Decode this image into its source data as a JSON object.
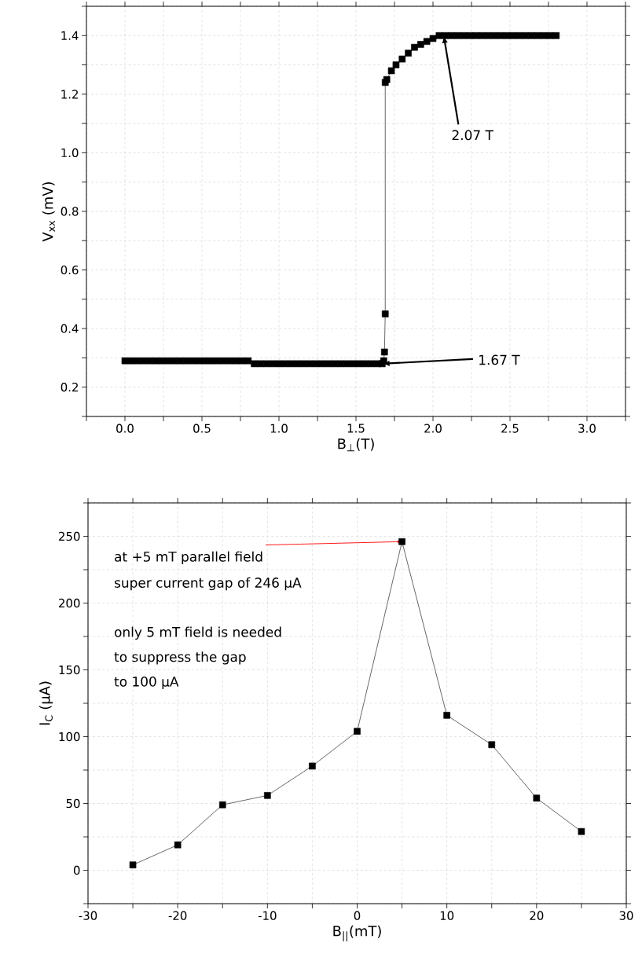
{
  "chart_data": [
    {
      "type": "line",
      "xlabel": "B$_{⊥}$(T)",
      "ylabel": "V$_{xx}$ (mV)",
      "marker": "square",
      "line_style": "solid",
      "grid": true,
      "xlim": [
        -0.25,
        3.25
      ],
      "ylim": [
        0.1,
        1.5
      ],
      "xticks": [
        {
          "value": -0.25,
          "label": null
        },
        {
          "value": 0,
          "label": "0.0"
        },
        {
          "value": 0.25,
          "label": null
        },
        0.5,
        {
          "value": 0.75,
          "label": null
        },
        {
          "value": 1,
          "label": "1.0"
        },
        {
          "value": 1.25,
          "label": null
        },
        1.5,
        {
          "value": 1.75,
          "label": null
        },
        {
          "value": 2,
          "label": "2.0"
        },
        {
          "value": 2.25,
          "label": null
        },
        2.5,
        {
          "value": 2.75,
          "label": null
        },
        {
          "value": 3,
          "label": "3.0"
        },
        {
          "value": 3.25,
          "label": null
        }
      ],
      "yticks": [
        {
          "value": 0.1,
          "label": null
        },
        0.2,
        {
          "value": 0.3,
          "label": null
        },
        0.4,
        {
          "value": 0.5,
          "label": null
        },
        0.6,
        {
          "value": 0.7,
          "label": null
        },
        0.8,
        {
          "value": 0.9,
          "label": null
        },
        {
          "value": 1,
          "label": "1.0"
        },
        {
          "value": 1.1,
          "label": null
        },
        1.2,
        {
          "value": 1.3,
          "label": null
        },
        1.4,
        {
          "value": 1.5,
          "label": null
        }
      ],
      "x": [
        0,
        0.04,
        0.08,
        0.12,
        0.16,
        0.2,
        0.24,
        0.28,
        0.32,
        0.36,
        0.4,
        0.44,
        0.48,
        0.52,
        0.56,
        0.6,
        0.64,
        0.68,
        0.72,
        0.76,
        0.8,
        0.84,
        0.88,
        0.92,
        0.96,
        1.0,
        1.04,
        1.08,
        1.12,
        1.16,
        1.2,
        1.24,
        1.28,
        1.32,
        1.36,
        1.4,
        1.44,
        1.48,
        1.52,
        1.56,
        1.6,
        1.64,
        1.67,
        1.68,
        1.685,
        1.69,
        1.69,
        1.7,
        1.73,
        1.76,
        1.8,
        1.84,
        1.88,
        1.92,
        1.96,
        2.0,
        2.04,
        2.08,
        2.12,
        2.16,
        2.2,
        2.24,
        2.28,
        2.32,
        2.36,
        2.4,
        2.44,
        2.48,
        2.52,
        2.56,
        2.6,
        2.64,
        2.68,
        2.72,
        2.76,
        2.8
      ],
      "series": [
        {
          "color": "#000000",
          "values": [
            0.29,
            0.29,
            0.29,
            0.29,
            0.29,
            0.29,
            0.29,
            0.29,
            0.29,
            0.29,
            0.29,
            0.29,
            0.29,
            0.29,
            0.29,
            0.29,
            0.29,
            0.29,
            0.29,
            0.29,
            0.29,
            0.28,
            0.28,
            0.28,
            0.28,
            0.28,
            0.28,
            0.28,
            0.28,
            0.28,
            0.28,
            0.28,
            0.28,
            0.28,
            0.28,
            0.28,
            0.28,
            0.28,
            0.28,
            0.28,
            0.28,
            0.28,
            0.28,
            0.29,
            0.32,
            0.45,
            1.24,
            1.25,
            1.28,
            1.3,
            1.32,
            1.34,
            1.36,
            1.37,
            1.38,
            1.39,
            1.4,
            1.4,
            1.4,
            1.4,
            1.4,
            1.4,
            1.4,
            1.4,
            1.4,
            1.4,
            1.4,
            1.4,
            1.4,
            1.4,
            1.4,
            1.4,
            1.4,
            1.4,
            1.4,
            1.4
          ]
        }
      ],
      "annotations": [
        {
          "text": "2.07 T",
          "x": 2.07,
          "y": 1.4
        },
        {
          "text": "1.67 T",
          "x": 1.67,
          "y": 0.28
        }
      ]
    },
    {
      "type": "line",
      "xlabel": "B$_{||}$(mT)",
      "ylabel": "I$_{C}$ (μA)",
      "marker": "square",
      "line_style": "solid",
      "grid": true,
      "xlim": [
        -30,
        30
      ],
      "ylim": [
        -25,
        275
      ],
      "xticks": [
        -30,
        {
          "value": -25,
          "label": null
        },
        -20,
        {
          "value": -15,
          "label": null
        },
        -10,
        {
          "value": -5,
          "label": null
        },
        0,
        {
          "value": 5,
          "label": null
        },
        10,
        {
          "value": 15,
          "label": null
        },
        20,
        {
          "value": 25,
          "label": null
        },
        30
      ],
      "yticks": [
        {
          "value": -25,
          "label": null
        },
        0,
        {
          "value": 25,
          "label": null
        },
        50,
        {
          "value": 75,
          "label": null
        },
        100,
        {
          "value": 125,
          "label": null
        },
        150,
        {
          "value": 175,
          "label": null
        },
        200,
        {
          "value": 225,
          "label": null
        },
        250,
        {
          "value": 275,
          "label": null
        }
      ],
      "x": [
        -25,
        -20,
        -15,
        -10,
        -5,
        0,
        5,
        10,
        15,
        20,
        25
      ],
      "series": [
        {
          "color": "#000000",
          "values": [
            4,
            19,
            49,
            56,
            78,
            104,
            246,
            116,
            94,
            54,
            29
          ]
        }
      ],
      "annotations": [
        {
          "text": "at +5 mT parallel field",
          "x": 5,
          "y": 246
        },
        "super current gap of 246 μA",
        "only 5 mT field is needed",
        "to suppress the gap",
        "to 100 μA"
      ]
    }
  ]
}
